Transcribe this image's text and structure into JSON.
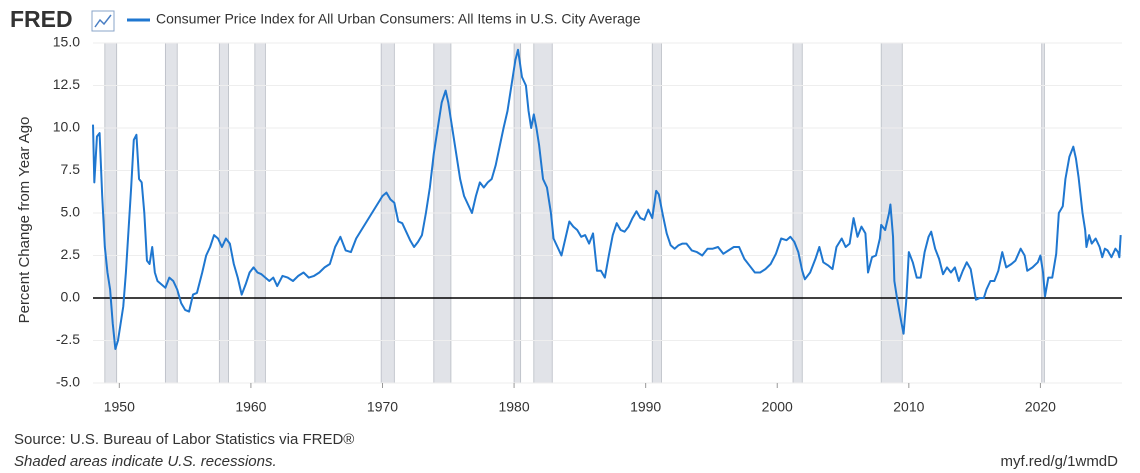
{
  "chart_data": {
    "type": "line",
    "logo": "FRED",
    "ylabel": "Percent Change from Year Ago",
    "source": "Source: U.S. Bureau of Labor Statistics via FRED®",
    "note": "Shaded areas indicate U.S. recessions.",
    "link": "myf.red/g/1wmdD",
    "xlim": [
      1948,
      2026.2
    ],
    "ylim": [
      -5,
      15
    ],
    "xticks": [
      1950,
      1960,
      1970,
      1980,
      1990,
      2000,
      2010,
      2020
    ],
    "yticks": [
      {
        "value": 15,
        "label": "15.0"
      },
      12.5,
      {
        "value": 10,
        "label": "10.0"
      },
      7.5,
      {
        "value": 5,
        "label": "5.0"
      },
      2.5,
      {
        "value": 0,
        "label": "0.0"
      },
      -2.5,
      {
        "value": -5,
        "label": "-5.0"
      }
    ],
    "grid": true,
    "recession_color": "#e1e3e8",
    "recessions": [
      [
        1948.9,
        1949.8
      ],
      [
        1953.5,
        1954.4
      ],
      [
        1957.6,
        1958.3
      ],
      [
        1960.3,
        1961.1
      ],
      [
        1969.9,
        1970.9
      ],
      [
        1973.9,
        1975.2
      ],
      [
        1980.0,
        1980.5
      ],
      [
        1981.5,
        1982.9
      ],
      [
        1990.5,
        1991.2
      ],
      [
        2001.2,
        2001.9
      ],
      [
        2007.9,
        2009.5
      ],
      [
        2020.1,
        2020.3
      ]
    ],
    "x": [
      1948,
      1948.1,
      1948.3,
      1948.5,
      1948.7,
      1948.9,
      1949.1,
      1949.3,
      1949.5,
      1949.7,
      1949.9,
      1950.1,
      1950.3,
      1950.5,
      1950.7,
      1950.9,
      1951.1,
      1951.3,
      1951.5,
      1951.7,
      1951.9,
      1952.1,
      1952.3,
      1952.5,
      1952.7,
      1952.9,
      1953.2,
      1953.5,
      1953.8,
      1954.1,
      1954.4,
      1954.7,
      1955.0,
      1955.3,
      1955.6,
      1955.9,
      1956.3,
      1956.6,
      1956.9,
      1957.2,
      1957.5,
      1957.8,
      1958.1,
      1958.4,
      1958.7,
      1959.0,
      1959.3,
      1959.6,
      1959.9,
      1960.2,
      1960.5,
      1960.8,
      1961.1,
      1961.4,
      1961.7,
      1962.0,
      1962.4,
      1962.8,
      1963.2,
      1963.6,
      1964.0,
      1964.4,
      1964.8,
      1965.2,
      1965.6,
      1966.0,
      1966.4,
      1966.8,
      1967.2,
      1967.6,
      1968.0,
      1968.4,
      1968.8,
      1969.2,
      1969.6,
      1970.0,
      1970.3,
      1970.6,
      1970.9,
      1971.2,
      1971.5,
      1971.8,
      1972.1,
      1972.4,
      1972.7,
      1973.0,
      1973.3,
      1973.6,
      1973.9,
      1974.2,
      1974.5,
      1974.8,
      1975.0,
      1975.3,
      1975.6,
      1975.9,
      1976.2,
      1976.5,
      1976.8,
      1977.1,
      1977.4,
      1977.7,
      1978.0,
      1978.3,
      1978.6,
      1978.9,
      1979.2,
      1979.5,
      1979.8,
      1980.1,
      1980.3,
      1980.6,
      1980.9,
      1981.1,
      1981.3,
      1981.5,
      1981.7,
      1981.9,
      1982.2,
      1982.5,
      1982.8,
      1983.0,
      1983.3,
      1983.6,
      1983.9,
      1984.2,
      1984.5,
      1984.8,
      1985.1,
      1985.4,
      1985.7,
      1986.0,
      1986.3,
      1986.6,
      1986.9,
      1987.2,
      1987.5,
      1987.8,
      1988.1,
      1988.4,
      1988.7,
      1989.0,
      1989.3,
      1989.6,
      1989.9,
      1990.2,
      1990.5,
      1990.8,
      1991.0,
      1991.3,
      1991.6,
      1991.9,
      1992.2,
      1992.5,
      1992.8,
      1993.1,
      1993.5,
      1993.9,
      1994.3,
      1994.7,
      1995.1,
      1995.5,
      1995.9,
      1996.3,
      1996.7,
      1997.1,
      1997.5,
      1997.9,
      1998.3,
      1998.7,
      1999.1,
      1999.5,
      1999.9,
      2000.3,
      2000.7,
      2001.0,
      2001.3,
      2001.6,
      2001.9,
      2002.1,
      2002.5,
      2002.9,
      2003.2,
      2003.5,
      2003.9,
      2004.2,
      2004.5,
      2004.9,
      2005.2,
      2005.5,
      2005.8,
      2006.1,
      2006.4,
      2006.7,
      2006.9,
      2007.2,
      2007.5,
      2007.8,
      2007.9,
      2008.2,
      2008.5,
      2008.6,
      2008.8,
      2008.9,
      2009.1,
      2009.4,
      2009.6,
      2009.8,
      2010.0,
      2010.3,
      2010.6,
      2010.9,
      2011.2,
      2011.5,
      2011.7,
      2012.0,
      2012.3,
      2012.6,
      2012.9,
      2013.2,
      2013.5,
      2013.8,
      2014.1,
      2014.4,
      2014.7,
      2014.9,
      2015.1,
      2015.4,
      2015.7,
      2015.9,
      2016.2,
      2016.5,
      2016.8,
      2017.1,
      2017.4,
      2017.8,
      2018.1,
      2018.5,
      2018.8,
      2019.0,
      2019.4,
      2019.8,
      2020.0,
      2020.2,
      2020.35,
      2020.6,
      2020.9,
      2021.2,
      2021.4,
      2021.7,
      2021.9,
      2022.2,
      2022.5,
      2022.7,
      2022.9,
      2023.2,
      2023.4,
      2023.5,
      2023.7,
      2023.9,
      2024.2,
      2024.5,
      2024.7,
      2024.9,
      2025.1,
      2025.4,
      2025.7,
      2025.9,
      2026.0,
      2026.1
    ],
    "series": [
      {
        "name": "Consumer Price Index for All Urban Consumers: All Items in U.S. City Average",
        "color": "#1f77d0",
        "values": [
          10.2,
          6.8,
          9.5,
          9.7,
          6.0,
          3.0,
          1.5,
          0.5,
          -1.5,
          -3.0,
          -2.5,
          -1.5,
          -0.5,
          1.5,
          4.0,
          6.5,
          9.3,
          9.6,
          7.0,
          6.8,
          5.0,
          2.2,
          2.0,
          3.0,
          1.5,
          1.0,
          0.8,
          0.6,
          1.2,
          1.0,
          0.5,
          -0.3,
          -0.7,
          -0.8,
          0.2,
          0.3,
          1.5,
          2.5,
          3.0,
          3.7,
          3.5,
          3.0,
          3.5,
          3.2,
          2.0,
          1.2,
          0.2,
          0.8,
          1.5,
          1.8,
          1.5,
          1.4,
          1.2,
          1.0,
          1.2,
          0.7,
          1.3,
          1.2,
          1.0,
          1.3,
          1.5,
          1.2,
          1.3,
          1.5,
          1.8,
          2.0,
          3.0,
          3.6,
          2.8,
          2.7,
          3.5,
          4.0,
          4.5,
          5.0,
          5.5,
          6.0,
          6.2,
          5.8,
          5.6,
          4.5,
          4.4,
          3.9,
          3.4,
          3.0,
          3.3,
          3.7,
          5.0,
          6.5,
          8.5,
          10.0,
          11.5,
          12.2,
          11.5,
          10.0,
          8.5,
          7.0,
          6.0,
          5.5,
          5.0,
          6.0,
          6.8,
          6.5,
          6.8,
          7.0,
          7.8,
          8.9,
          10.0,
          11.0,
          12.5,
          14.0,
          14.6,
          13.0,
          12.5,
          11.0,
          10.0,
          10.8,
          10.0,
          9.0,
          7.0,
          6.5,
          5.0,
          3.5,
          3.0,
          2.5,
          3.5,
          4.5,
          4.2,
          4.0,
          3.6,
          3.7,
          3.2,
          3.8,
          1.6,
          1.6,
          1.2,
          2.5,
          3.7,
          4.4,
          4.0,
          3.9,
          4.2,
          4.7,
          5.1,
          4.7,
          4.6,
          5.2,
          4.7,
          6.3,
          6.1,
          4.9,
          3.8,
          3.1,
          2.9,
          3.1,
          3.2,
          3.2,
          2.8,
          2.7,
          2.5,
          2.9,
          2.9,
          3.0,
          2.6,
          2.8,
          3.0,
          3.0,
          2.3,
          1.9,
          1.5,
          1.5,
          1.7,
          2.0,
          2.6,
          3.5,
          3.4,
          3.6,
          3.3,
          2.7,
          1.6,
          1.1,
          1.5,
          2.3,
          3.0,
          2.1,
          1.9,
          1.7,
          3.0,
          3.5,
          3.0,
          3.2,
          4.7,
          3.6,
          4.2,
          3.8,
          1.5,
          2.4,
          2.5,
          3.5,
          4.3,
          4.0,
          5.0,
          5.5,
          3.6,
          1.0,
          0.0,
          -1.3,
          -2.1,
          -0.2,
          2.7,
          2.1,
          1.2,
          1.2,
          2.7,
          3.6,
          3.9,
          2.9,
          2.3,
          1.4,
          1.8,
          1.5,
          1.8,
          1.0,
          1.6,
          2.1,
          1.7,
          0.8,
          -0.1,
          0.0,
          0.0,
          0.5,
          1.0,
          1.0,
          1.6,
          2.7,
          1.8,
          2.0,
          2.2,
          2.9,
          2.5,
          1.6,
          1.8,
          2.1,
          2.5,
          1.5,
          0.1,
          1.2,
          1.2,
          2.6,
          5.0,
          5.4,
          7.0,
          8.3,
          8.9,
          8.2,
          7.1,
          5.0,
          4.0,
          3.0,
          3.7,
          3.2,
          3.5,
          3.0,
          2.4,
          2.9,
          2.8,
          2.4,
          2.9,
          2.7,
          2.4,
          3.7
        ]
      }
    ]
  }
}
